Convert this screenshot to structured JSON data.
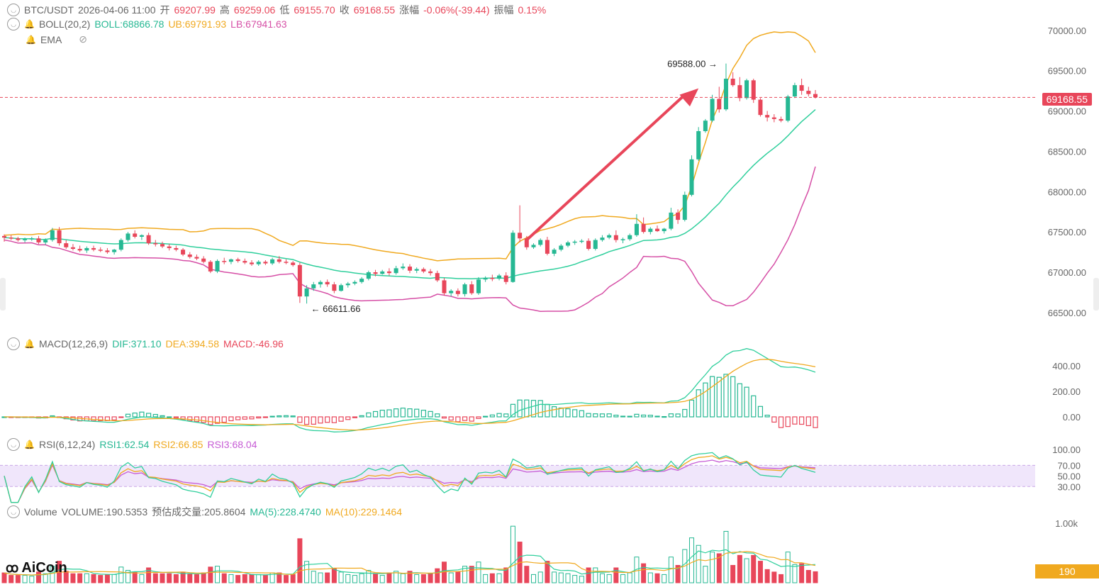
{
  "header": {
    "symbol": "BTC/USDT",
    "datetime": "2026-04-06 11:00",
    "open_label": "开",
    "open": "69207.99",
    "high_label": "高",
    "high": "69259.06",
    "low_label": "低",
    "low": "69155.70",
    "close_label": "收",
    "close": "69168.55",
    "change_label": "涨幅",
    "change": "-0.06%(-39.44)",
    "amplitude_label": "振幅",
    "amplitude": "0.15%"
  },
  "boll": {
    "name": "BOLL(20,2)",
    "mid": "BOLL:68866.78",
    "ub": "UB:69791.93",
    "lb": "LB:67941.63"
  },
  "ema": {
    "name": "EMA"
  },
  "macd": {
    "name": "MACD(12,26,9)",
    "dif": "DIF:371.10",
    "dea": "DEA:394.58",
    "macd": "MACD:-46.96"
  },
  "rsi": {
    "name": "RSI(6,12,24)",
    "rsi1": "RSI1:62.54",
    "rsi2": "RSI2:66.85",
    "rsi3": "RSI3:68.04"
  },
  "volume": {
    "name": "Volume",
    "vol": "VOLUME:190.5353",
    "est": "预估成交量:205.8604",
    "ma5": "MA(5):228.4740",
    "ma10": "MA(10):229.1464"
  },
  "annotations": {
    "high_marker": "69588.00",
    "low_marker": "66611.66"
  },
  "current_price_tag": "69168.55",
  "current_volume_tag": "190",
  "logo": "AiCoin",
  "price_axis": [
    "70000.00",
    "69500.00",
    "69000.00",
    "68500.00",
    "68000.00",
    "67500.00",
    "67000.00",
    "66500.00"
  ],
  "macd_axis": [
    "400.00",
    "200.00",
    "0.00"
  ],
  "rsi_axis": [
    "100.00",
    "70.00",
    "50.00",
    "30.00"
  ],
  "volume_axis": [
    "1.00k"
  ],
  "colors": {
    "up": "#26b893",
    "down": "#e8465a",
    "boll_mid": "#2fcf9c",
    "boll_ub": "#f0a91f",
    "boll_lb": "#d64fa6",
    "arrow": "#e8465a",
    "rsi_band": "#f0e6fb"
  },
  "chart_data": {
    "type": "candlestick",
    "x_unit": "bar index (hourly)",
    "ylim_price": [
      66350,
      70200
    ],
    "candles": [
      [
        67450,
        67470,
        67380,
        67430
      ],
      [
        67430,
        67460,
        67400,
        67420
      ],
      [
        67420,
        67440,
        67380,
        67400
      ],
      [
        67400,
        67430,
        67370,
        67410
      ],
      [
        67410,
        67440,
        67390,
        67420
      ],
      [
        67420,
        67450,
        67350,
        67370
      ],
      [
        67370,
        67420,
        67340,
        67400
      ],
      [
        67400,
        67550,
        67380,
        67520
      ],
      [
        67520,
        67560,
        67330,
        67360
      ],
      [
        67360,
        67400,
        67290,
        67310
      ],
      [
        67310,
        67350,
        67270,
        67290
      ],
      [
        67290,
        67330,
        67250,
        67270
      ],
      [
        67270,
        67320,
        67240,
        67300
      ],
      [
        67300,
        67330,
        67260,
        67280
      ],
      [
        67280,
        67310,
        67250,
        67270
      ],
      [
        67270,
        67300,
        67230,
        67250
      ],
      [
        67250,
        67290,
        67220,
        67280
      ],
      [
        67280,
        67420,
        67260,
        67400
      ],
      [
        67400,
        67500,
        67380,
        67480
      ],
      [
        67480,
        67520,
        67420,
        67440
      ],
      [
        67440,
        67470,
        67400,
        67460
      ],
      [
        67460,
        67490,
        67340,
        67360
      ],
      [
        67360,
        67400,
        67320,
        67350
      ],
      [
        67350,
        67380,
        67300,
        67320
      ],
      [
        67320,
        67350,
        67270,
        67300
      ],
      [
        67300,
        67330,
        67260,
        67280
      ],
      [
        67280,
        67300,
        67200,
        67220
      ],
      [
        67220,
        67250,
        67170,
        67190
      ],
      [
        67190,
        67220,
        67150,
        67170
      ],
      [
        67170,
        67200,
        67110,
        67130
      ],
      [
        67130,
        67150,
        66990,
        67010
      ],
      [
        67010,
        67160,
        66990,
        67140
      ],
      [
        67140,
        67180,
        67100,
        67130
      ],
      [
        67130,
        67170,
        67100,
        67160
      ],
      [
        67160,
        67180,
        67120,
        67140
      ],
      [
        67140,
        67170,
        67100,
        67120
      ],
      [
        67120,
        67150,
        67080,
        67100
      ],
      [
        67100,
        67150,
        67080,
        67130
      ],
      [
        67130,
        67150,
        67090,
        67110
      ],
      [
        67110,
        67180,
        67090,
        67160
      ],
      [
        67160,
        67200,
        67110,
        67130
      ],
      [
        67130,
        67160,
        67100,
        67120
      ],
      [
        67120,
        67140,
        67070,
        67090
      ],
      [
        67090,
        67120,
        66620,
        66700
      ],
      [
        66700,
        66840,
        66612,
        66800
      ],
      [
        66800,
        66880,
        66770,
        66850
      ],
      [
        66850,
        66900,
        66810,
        66880
      ],
      [
        66880,
        66910,
        66820,
        66850
      ],
      [
        66850,
        66880,
        66740,
        66770
      ],
      [
        66770,
        66860,
        66760,
        66840
      ],
      [
        66840,
        66880,
        66810,
        66860
      ],
      [
        66860,
        66900,
        66840,
        66880
      ],
      [
        66880,
        66940,
        66860,
        66920
      ],
      [
        66920,
        67020,
        66900,
        67000
      ],
      [
        67000,
        67030,
        66950,
        66980
      ],
      [
        66980,
        67030,
        66970,
        67010
      ],
      [
        67010,
        67050,
        66960,
        66990
      ],
      [
        66990,
        67080,
        66970,
        67050
      ],
      [
        67050,
        67110,
        67030,
        67070
      ],
      [
        67070,
        67100,
        66990,
        67020
      ],
      [
        67020,
        67060,
        66990,
        67040
      ],
      [
        67040,
        67060,
        66990,
        67010
      ],
      [
        67010,
        67040,
        66960,
        66990
      ],
      [
        66990,
        67020,
        66880,
        66900
      ],
      [
        66900,
        66930,
        66710,
        66740
      ],
      [
        66740,
        66790,
        66700,
        66770
      ],
      [
        66770,
        66800,
        66700,
        66730
      ],
      [
        66730,
        66870,
        66700,
        66850
      ],
      [
        66850,
        66890,
        66720,
        66740
      ],
      [
        66740,
        66940,
        66720,
        66910
      ],
      [
        66910,
        66950,
        66880,
        66930
      ],
      [
        66930,
        66970,
        66890,
        66920
      ],
      [
        66920,
        66980,
        66900,
        66960
      ],
      [
        66960,
        67000,
        66850,
        66880
      ],
      [
        66880,
        67520,
        66870,
        67490
      ],
      [
        67490,
        67830,
        67370,
        67420
      ],
      [
        67420,
        67450,
        67280,
        67310
      ],
      [
        67310,
        67360,
        67290,
        67340
      ],
      [
        67340,
        67420,
        67320,
        67400
      ],
      [
        67400,
        67440,
        67210,
        67230
      ],
      [
        67230,
        67300,
        67200,
        67280
      ],
      [
        67280,
        67350,
        67260,
        67330
      ],
      [
        67330,
        67390,
        67310,
        67370
      ],
      [
        67370,
        67400,
        67340,
        67380
      ],
      [
        67380,
        67410,
        67360,
        67390
      ],
      [
        67390,
        67420,
        67270,
        67290
      ],
      [
        67290,
        67420,
        67270,
        67400
      ],
      [
        67400,
        67460,
        67380,
        67430
      ],
      [
        67430,
        67480,
        67410,
        67460
      ],
      [
        67460,
        67520,
        67370,
        67400
      ],
      [
        67400,
        67430,
        67360,
        67410
      ],
      [
        67410,
        67480,
        67390,
        67460
      ],
      [
        67460,
        67720,
        67440,
        67600
      ],
      [
        67600,
        67680,
        67480,
        67500
      ],
      [
        67500,
        67560,
        67470,
        67540
      ],
      [
        67540,
        67580,
        67500,
        67510
      ],
      [
        67510,
        67550,
        67480,
        67540
      ],
      [
        67540,
        67800,
        67520,
        67740
      ],
      [
        67740,
        67780,
        67600,
        67650
      ],
      [
        67650,
        68000,
        67630,
        67960
      ],
      [
        67960,
        68450,
        67940,
        68400
      ],
      [
        68400,
        68800,
        68380,
        68750
      ],
      [
        68750,
        68900,
        68730,
        68880
      ],
      [
        68880,
        69200,
        68860,
        69150
      ],
      [
        69150,
        69300,
        68980,
        69020
      ],
      [
        69020,
        69588,
        69000,
        69400
      ],
      [
        69400,
        69480,
        69300,
        69320
      ],
      [
        69320,
        69420,
        69120,
        69160
      ],
      [
        69160,
        69400,
        69140,
        69380
      ],
      [
        69380,
        69400,
        69100,
        69140
      ],
      [
        69140,
        69160,
        68930,
        68950
      ],
      [
        68950,
        69000,
        68870,
        68920
      ],
      [
        68920,
        68960,
        68860,
        68900
      ],
      [
        68900,
        68930,
        68860,
        68880
      ],
      [
        68880,
        69200,
        68860,
        69180
      ],
      [
        69180,
        69350,
        69160,
        69320
      ],
      [
        69320,
        69400,
        69200,
        69250
      ],
      [
        69250,
        69300,
        69180,
        69210
      ],
      [
        69210,
        69259,
        69155,
        69169
      ]
    ]
  }
}
